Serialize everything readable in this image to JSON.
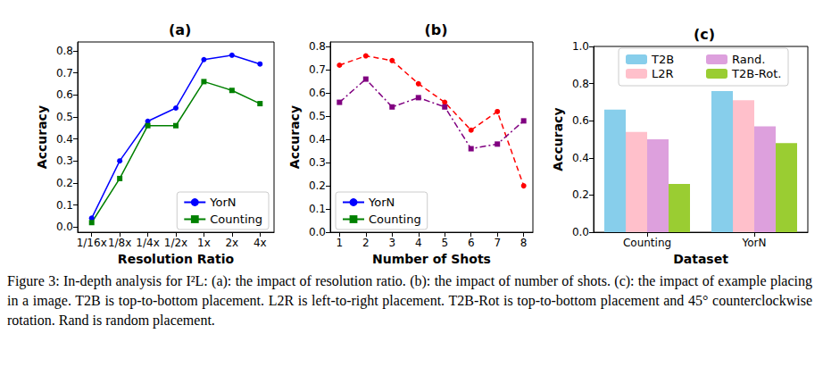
{
  "chart_data": [
    {
      "type": "line",
      "title": "(a)",
      "xlabel": "Resolution Ratio",
      "ylabel": "Accuracy",
      "categories": [
        "1/16x",
        "1/8x",
        "1/4x",
        "1/2x",
        "1x",
        "2x",
        "4x"
      ],
      "series": [
        {
          "name": "YorN",
          "color": "#0000ff",
          "marker": "circle",
          "line_style": "solid",
          "values": [
            0.04,
            0.3,
            0.48,
            0.54,
            0.76,
            0.78,
            0.74
          ]
        },
        {
          "name": "Counting",
          "color": "#008000",
          "marker": "square",
          "line_style": "solid",
          "values": [
            0.02,
            0.22,
            0.46,
            0.46,
            0.66,
            0.62,
            0.56
          ]
        }
      ],
      "ylim": [
        -0.024,
        0.84
      ],
      "yticks": [
        {
          "value": 0,
          "label": "0.0"
        },
        0.1,
        0.2,
        0.3,
        0.4,
        0.5,
        0.6,
        0.7,
        0.8
      ],
      "legend": "lower right",
      "grid": false
    },
    {
      "type": "line",
      "title": "(b)",
      "xlabel": "Number of Shots",
      "ylabel": "Accuracy",
      "x": [
        1,
        2,
        3,
        4,
        5,
        6,
        7,
        8
      ],
      "series": [
        {
          "name": "YorN",
          "color": "#ff0000",
          "marker": "circle",
          "line_style": "dashed",
          "values": [
            0.72,
            0.76,
            0.74,
            0.64,
            0.56,
            0.44,
            0.52,
            0.2
          ]
        },
        {
          "name": "Counting",
          "color": "#800080",
          "marker": "square",
          "line_style": "dashdot",
          "values": [
            0.56,
            0.66,
            0.54,
            0.58,
            0.54,
            0.36,
            0.38,
            0.48
          ]
        }
      ],
      "xlim": [
        0.65,
        8.35
      ],
      "xticks": [
        1,
        2,
        3,
        4,
        5,
        6,
        7,
        8
      ],
      "ylim": [
        0,
        0.82
      ],
      "yticks": [
        {
          "value": 0,
          "label": "0.0"
        },
        0.1,
        0.2,
        0.3,
        0.4,
        0.5,
        0.6,
        0.7,
        0.8
      ],
      "legend": "lower left",
      "grid": false
    },
    {
      "type": "bar",
      "title": "(c)",
      "xlabel": "Dataset",
      "ylabel": "Accuracy",
      "categories": [
        "Counting",
        "YorN"
      ],
      "series": [
        {
          "name": "T2B",
          "color": "#87ceeb",
          "values": [
            0.66,
            0.76
          ]
        },
        {
          "name": "L2R",
          "color": "#ffc0cb",
          "values": [
            0.54,
            0.71
          ]
        },
        {
          "name": "Rand.",
          "color": "#dda0dd",
          "values": [
            0.5,
            0.57
          ]
        },
        {
          "name": "T2B-Rot.",
          "color": "#9acd32",
          "values": [
            0.26,
            0.48
          ]
        }
      ],
      "ylim": [
        0,
        1.0
      ],
      "yticks": [
        {
          "value": 0,
          "label": "0.0"
        },
        0.2,
        0.4,
        0.6,
        0.8,
        {
          "value": 1.0,
          "label": "1.0"
        }
      ],
      "legend": "upper center",
      "grid": false
    }
  ],
  "caption": "Figure 3: In-depth analysis for I²L: (a): the impact of resolution ratio. (b): the impact of number of shots. (c): the impact of example placing in a image. T2B is top-to-bottom placement. L2R is left-to-right placement. T2B-Rot is top-to-bottom placement and 45° counterclockwise rotation. Rand is random placement."
}
